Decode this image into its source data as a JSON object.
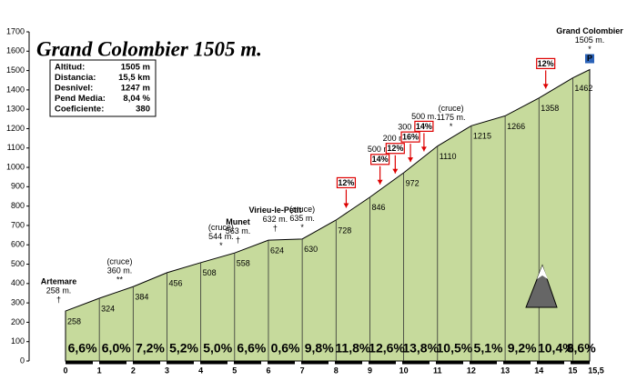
{
  "chart_data": {
    "type": "area",
    "title": "Grand Colombier 1505 m.",
    "color": "#c6da9c",
    "xlim": [
      0,
      15.5
    ],
    "ylim": [
      0,
      1700
    ],
    "xticks": [
      0,
      1,
      2,
      3,
      4,
      5,
      6,
      7,
      8,
      9,
      10,
      11,
      12,
      13,
      14,
      15,
      {
        "value": 15.5,
        "label": "15,5"
      }
    ],
    "yticks": [
      0,
      100,
      200,
      300,
      400,
      500,
      600,
      700,
      800,
      900,
      1000,
      1100,
      1200,
      1300,
      1400,
      1500,
      1600,
      1700
    ],
    "x": [
      0,
      1,
      2,
      3,
      4,
      5,
      6,
      7,
      8,
      9,
      10,
      11,
      12,
      13,
      14,
      15,
      15.5
    ],
    "values": [
      258,
      324,
      384,
      456,
      508,
      558,
      624,
      630,
      728,
      846,
      972,
      1110,
      1215,
      1266,
      1358,
      1462,
      1505
    ],
    "gradients": {
      "values": [
        6.6,
        6.0,
        7.2,
        5.2,
        5.0,
        6.6,
        0.6,
        9.8,
        11.8,
        12.6,
        13.8,
        10.5,
        5.1,
        9.2,
        10.4,
        8.6
      ],
      "value_labels": [
        "6,6%",
        "6,0%",
        "7,2%",
        "5,2%",
        "5,0%",
        "6,6%",
        "0,6%",
        "9,8%",
        "11,8%",
        "12,6%",
        "13,8%",
        "10,5%",
        "5,1%",
        "9,2%",
        "10,4%",
        "8,6%"
      ]
    },
    "annotations": [
      {
        "x": -0.2,
        "lines": [
          "Artemare",
          "258 m.",
          "†"
        ]
      },
      {
        "x": 1.6,
        "lines": [
          "(cruce)",
          "360 m.",
          "**"
        ]
      },
      {
        "x": 4.6,
        "lines": [
          "(cruce)",
          "544 m.",
          "*"
        ]
      },
      {
        "x": 5.1,
        "lines": [
          "Munet",
          "563 m.",
          "†"
        ]
      },
      {
        "x": 6.2,
        "lines": [
          "Virieu-le-Petit",
          "632 m.",
          "†"
        ]
      },
      {
        "x": 7.0,
        "lines": [
          "(cruce)",
          "635 m.",
          "*"
        ]
      },
      {
        "x": 11.4,
        "lines": [
          "(cruce)",
          "1175 m.",
          "*"
        ]
      },
      {
        "x": 15.5,
        "lines": [
          "Grand Colombier",
          "1505 m.",
          "*",
          "P"
        ]
      }
    ],
    "flags": [
      {
        "x": 8.3,
        "label": "12%"
      },
      {
        "x": 9.3,
        "label": "14%",
        "note": "500 m."
      },
      {
        "x": 9.75,
        "label": "12%",
        "note": "200 m."
      },
      {
        "x": 10.2,
        "label": "16%",
        "note": "300 m."
      },
      {
        "x": 10.6,
        "label": "14%",
        "note": "500 m."
      },
      {
        "x": 14.2,
        "label": "12%"
      }
    ],
    "info_table": [
      [
        "Altitud:",
        "1505 m"
      ],
      [
        "Distancia:",
        "15,5 km"
      ],
      [
        "Desnivel:",
        "1247 m"
      ],
      [
        "Pend Media:",
        "8,04 %"
      ],
      [
        "Coeficiente:",
        "380"
      ]
    ]
  }
}
